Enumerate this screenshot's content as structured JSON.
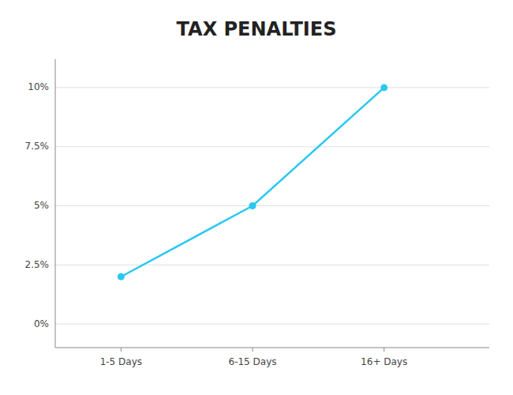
{
  "chart_data": {
    "type": "line",
    "title": "TAX PENALTIES",
    "x": [
      1,
      2,
      3
    ],
    "values": [
      2.0,
      5.0,
      10.0
    ],
    "xlim": [
      0.5,
      3.8
    ],
    "xticks": [
      {
        "value": 1,
        "label": "1-5 Days"
      },
      {
        "value": 2,
        "label": "6-15 Days"
      },
      {
        "value": 3,
        "label": "16+ Days"
      }
    ],
    "ylim": [
      -1.0,
      11.2
    ],
    "yticks": [
      {
        "value": 0,
        "label": "0%"
      },
      {
        "value": 2.5,
        "label": "2.5%"
      },
      {
        "value": 5.0,
        "label": "5%"
      },
      {
        "value": 7.5,
        "label": "7.5%"
      },
      {
        "value": 10.0,
        "label": "10%"
      }
    ],
    "color": "#29C8F0",
    "marker": "circle",
    "grid": true
  }
}
